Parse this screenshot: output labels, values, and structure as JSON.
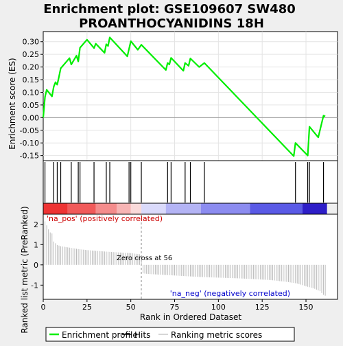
{
  "title": {
    "line1": "Enrichment plot: GSE109607 SW480",
    "line2": "PROANTHOCYANIDINS 18H"
  },
  "chart_data": {
    "type": "line",
    "xlabel": "Rank in Ordered Dataset",
    "es_panel": {
      "ylabel": "Enrichment score (ES)",
      "xlim": [
        0,
        168
      ],
      "ylim": [
        -0.17,
        0.34
      ],
      "yticks": [
        -0.15,
        -0.1,
        -0.05,
        0.0,
        0.05,
        0.1,
        0.15,
        0.2,
        0.25,
        0.3
      ],
      "ytick_labels": [
        "-0.15",
        "-0.10",
        "-0.05",
        "0.00",
        "0.05",
        "0.10",
        "0.15",
        "0.20",
        "0.25",
        "0.30"
      ],
      "series": {
        "name": "Enrichment profile",
        "color": "#00ee00",
        "x": [
          0,
          1,
          2,
          5,
          6,
          7,
          8,
          9,
          10,
          15,
          16,
          19,
          20,
          21,
          25,
          29,
          30,
          35,
          36,
          37,
          38,
          48,
          50,
          54,
          56,
          70,
          71,
          72,
          73,
          80,
          81,
          83,
          84,
          89,
          92,
          143,
          144,
          151,
          152,
          157,
          160,
          161
        ],
        "y": [
          0.0,
          0.082,
          0.11,
          0.084,
          0.122,
          0.14,
          0.13,
          0.162,
          0.195,
          0.235,
          0.21,
          0.245,
          0.222,
          0.276,
          0.308,
          0.275,
          0.292,
          0.256,
          0.29,
          0.283,
          0.317,
          0.242,
          0.302,
          0.268,
          0.288,
          0.188,
          0.216,
          0.21,
          0.236,
          0.185,
          0.216,
          0.205,
          0.234,
          0.2,
          0.216,
          -0.152,
          -0.1,
          -0.15,
          -0.036,
          -0.078,
          0.008,
          0.005
        ]
      }
    },
    "hits": {
      "name": "Hits",
      "color": "#000000",
      "x": [
        1,
        6,
        8,
        10,
        16,
        20,
        21,
        29,
        36,
        38,
        49,
        50,
        56,
        71,
        73,
        81,
        84,
        92,
        144,
        151,
        152,
        160
      ]
    },
    "colorbar": {
      "n_positive": 56,
      "segments": [
        {
          "from": 0,
          "to": 14,
          "color": "#ee3333"
        },
        {
          "from": 14,
          "to": 30,
          "color": "#f15a5a"
        },
        {
          "from": 30,
          "to": 42,
          "color": "#f48c8c"
        },
        {
          "from": 42,
          "to": 50,
          "color": "#f7b4b4"
        },
        {
          "from": 50,
          "to": 56,
          "color": "#fadada"
        },
        {
          "from": 56,
          "to": 70,
          "color": "#dadafb"
        },
        {
          "from": 70,
          "to": 90,
          "color": "#b4b4f5"
        },
        {
          "from": 90,
          "to": 118,
          "color": "#8c8cf0"
        },
        {
          "from": 118,
          "to": 148,
          "color": "#5a5ae6"
        },
        {
          "from": 148,
          "to": 162,
          "color": "#2e1ec8"
        }
      ]
    },
    "ranking_panel": {
      "ylabel": "Ranked list metric (PreRanked)",
      "ylim": [
        -1.7,
        2.5
      ],
      "yticks": [
        -1,
        0,
        1,
        2
      ],
      "ytick_labels": [
        "-1",
        "0",
        "1",
        "2"
      ],
      "series": {
        "name": "Ranking metric scores",
        "color": "#bbbbbb",
        "x": [
          1,
          2,
          3,
          4,
          5,
          6,
          8,
          10,
          15,
          20,
          25,
          30,
          40,
          50,
          55,
          56,
          57,
          60,
          70,
          80,
          90,
          100,
          110,
          120,
          130,
          140,
          145,
          148,
          150,
          152,
          155,
          158,
          160,
          161
        ],
        "y": [
          2.15,
          1.95,
          1.75,
          1.6,
          1.55,
          1.15,
          0.98,
          0.92,
          0.85,
          0.78,
          0.73,
          0.69,
          0.63,
          0.58,
          0.52,
          0.48,
          -0.42,
          -0.45,
          -0.5,
          -0.55,
          -0.6,
          -0.63,
          -0.66,
          -0.7,
          -0.75,
          -0.85,
          -0.92,
          -1.0,
          -1.06,
          -1.1,
          -1.18,
          -1.3,
          -1.48,
          -1.52
        ]
      }
    },
    "xticks": [
      0,
      25,
      50,
      75,
      100,
      125,
      150
    ],
    "xtick_labels": [
      "0",
      "25",
      "50",
      "75",
      "100",
      "125",
      "150"
    ],
    "annotations": {
      "zero_cross_label": "Zero cross at 56",
      "zero_cross_x": 56,
      "pos_label": "'na_pos' (positively correlated)",
      "neg_label": "'na_neg' (negatively correlated)",
      "pos_color": "#cc0000",
      "neg_color": "#0000cc"
    },
    "legend": {
      "placement": "bottom",
      "items": [
        {
          "key": "profile",
          "label": "Enrichment profile",
          "color": "#00ee00"
        },
        {
          "key": "hits",
          "label": "Hits",
          "color": "#000000"
        },
        {
          "key": "ranking",
          "label": "Ranking metric scores",
          "color": "#bbbbbb"
        }
      ]
    }
  }
}
